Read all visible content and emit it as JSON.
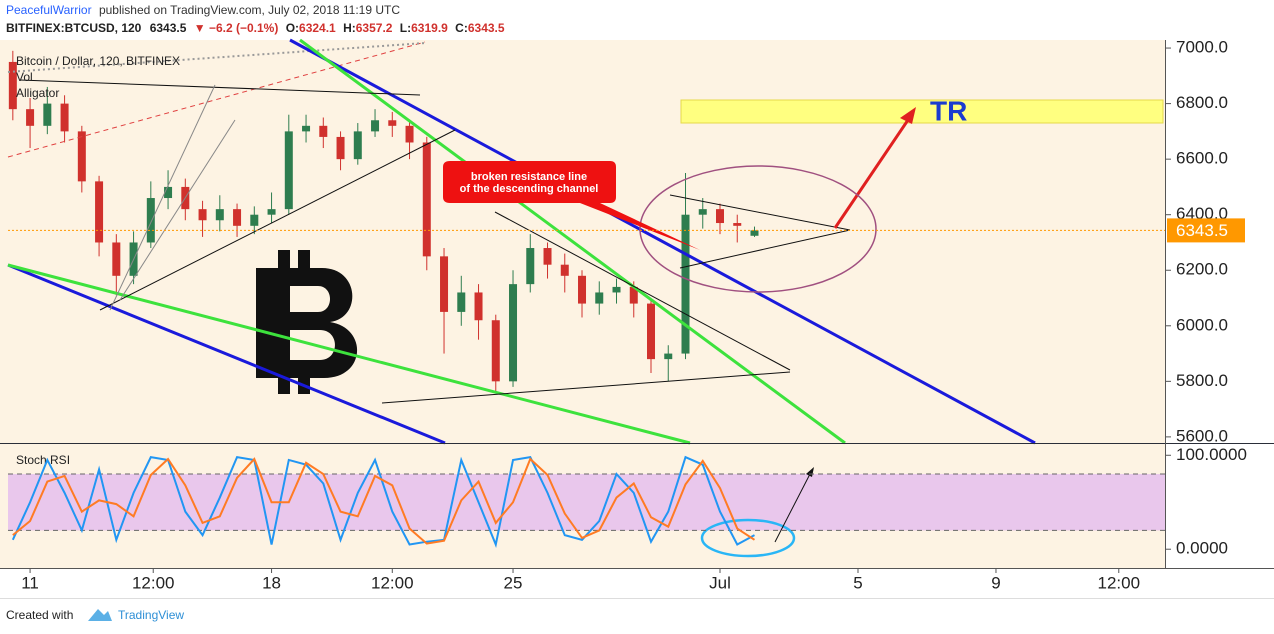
{
  "header": {
    "author": "PeacefulWarrior",
    "published": "published on TradingView.com, July 02, 2018 11:19 UTC",
    "symbol": "BITFINEX:BTCUSD, 120",
    "change": "▼ −6.2 (−0.1%)",
    "ohlc_labels": [
      "O:",
      "H:",
      "L:",
      "C:"
    ]
  },
  "footer": {
    "created": "Created with",
    "brand": "TradingView"
  },
  "chart_data": [
    {
      "type": "candlestick",
      "title": "Bitcoin / Dollar, 120, BITFINEX",
      "indicators": [
        "Vol",
        "Alligator"
      ],
      "x": [
        10.5,
        11,
        11.5,
        12,
        12.5,
        13,
        13.5,
        14,
        14.5,
        15,
        15.5,
        16,
        16.5,
        17,
        17.5,
        18,
        18.5,
        19,
        19.5,
        20,
        20.5,
        21,
        21.5,
        22,
        22.5,
        23,
        23.5,
        24,
        24.5,
        25,
        25.5,
        26,
        26.5,
        27,
        27.5,
        28,
        28.5,
        29,
        29.5,
        30,
        30.5,
        31,
        31.5,
        32
      ],
      "open": [
        6950,
        6780,
        6720,
        6800,
        6700,
        6520,
        6300,
        6180,
        6300,
        6460,
        6500,
        6420,
        6380,
        6420,
        6360,
        6400,
        6420,
        6700,
        6720,
        6680,
        6600,
        6700,
        6740,
        6720,
        6660,
        6250,
        6050,
        6120,
        6020,
        5800,
        6150,
        6280,
        6220,
        6180,
        6080,
        6120,
        6140,
        6080,
        5880,
        5900,
        6400,
        6420,
        6370,
        6324.1
      ],
      "high": [
        6990,
        6820,
        6860,
        6830,
        6720,
        6540,
        6330,
        6340,
        6520,
        6560,
        6530,
        6450,
        6470,
        6440,
        6430,
        6480,
        6760,
        6760,
        6750,
        6700,
        6730,
        6780,
        6770,
        6740,
        6680,
        6280,
        6180,
        6150,
        6040,
        6200,
        6330,
        6300,
        6260,
        6200,
        6160,
        6170,
        6160,
        6100,
        5930,
        6550,
        6460,
        6440,
        6400,
        6357.2
      ],
      "low": [
        6740,
        6640,
        6690,
        6660,
        6480,
        6250,
        6110,
        6150,
        6280,
        6420,
        6380,
        6320,
        6340,
        6320,
        6330,
        6370,
        6400,
        6660,
        6640,
        6560,
        6580,
        6680,
        6680,
        6600,
        6200,
        5900,
        6000,
        5950,
        5760,
        5780,
        6120,
        6170,
        6120,
        6030,
        6040,
        6080,
        6030,
        5830,
        5800,
        5880,
        6350,
        6330,
        6300,
        6319.9
      ],
      "close": [
        6780,
        6720,
        6800,
        6700,
        6520,
        6300,
        6180,
        6300,
        6460,
        6500,
        6420,
        6380,
        6420,
        6360,
        6400,
        6420,
        6700,
        6720,
        6680,
        6600,
        6700,
        6740,
        6720,
        6660,
        6250,
        6050,
        6120,
        6020,
        5800,
        6150,
        6280,
        6220,
        6180,
        6080,
        6120,
        6140,
        6080,
        5880,
        5900,
        6400,
        6420,
        6370,
        6360,
        6343.5
      ],
      "up_color": "#2e7d4f",
      "down_color": "#d0312d",
      "last_price_color": "#ff9800",
      "xlim": [
        10.36,
        43.9
      ],
      "ylim": [
        5578,
        7029
      ],
      "yticks": [
        {
          "value": 7000,
          "label": "7000.0"
        },
        {
          "value": 6800,
          "label": "6800.0"
        },
        {
          "value": 6600,
          "label": "6600.0"
        },
        {
          "value": 6400,
          "label": "6400.0"
        },
        {
          "value": 6200,
          "label": "6200.0"
        },
        {
          "value": 6000,
          "label": "6000.0"
        },
        {
          "value": 5800,
          "label": "5800.0"
        },
        {
          "value": 5600,
          "label": "5600.0"
        }
      ],
      "callout": [
        "broken resistance line",
        "of the descending channel"
      ],
      "target_label": "TR"
    },
    {
      "type": "line",
      "title": "Stoch RSI",
      "x": [
        10.5,
        11,
        11.5,
        12,
        12.5,
        13,
        13.5,
        14,
        14.5,
        15,
        15.5,
        16,
        16.5,
        17,
        17.5,
        18,
        18.5,
        19,
        19.5,
        20,
        20.5,
        21,
        21.5,
        22,
        22.5,
        23,
        23.5,
        24,
        24.5,
        25,
        25.5,
        26,
        26.5,
        27,
        27.5,
        28,
        28.5,
        29,
        29.5,
        30,
        30.5,
        31,
        31.5,
        32
      ],
      "series": [
        {
          "color": "#2196f3",
          "values": [
            10,
            50,
            95,
            60,
            20,
            85,
            10,
            60,
            98,
            95,
            40,
            15,
            55,
            98,
            95,
            5,
            95,
            90,
            70,
            10,
            60,
            95,
            40,
            5,
            8,
            10,
            95,
            50,
            5,
            95,
            98,
            60,
            15,
            10,
            30,
            80,
            60,
            8,
            40,
            98,
            90,
            40,
            5,
            15
          ]
        },
        {
          "color": "#ff7b24",
          "values": [
            15,
            30,
            72,
            78,
            40,
            52,
            48,
            35,
            79,
            96,
            68,
            28,
            35,
            76,
            96,
            50,
            50,
            92,
            80,
            40,
            35,
            78,
            68,
            22,
            6,
            9,
            52,
            72,
            28,
            50,
            96,
            79,
            38,
            12,
            20,
            55,
            70,
            34,
            24,
            69,
            94,
            65,
            22,
            10
          ]
        }
      ],
      "bands": [
        20,
        80
      ],
      "band_color": "#e9c7ec",
      "xlim": [
        10.36,
        43.9
      ],
      "ylim": [
        -20,
        112
      ],
      "yticks": [
        {
          "value": 100,
          "label": "100.0000"
        },
        {
          "value": 0,
          "label": "0.0000"
        }
      ],
      "xticks": [
        11,
        {
          "value": 14.57,
          "label": "12:00"
        },
        18,
        {
          "value": 21.5,
          "label": "12:00"
        },
        25,
        {
          "value": 31,
          "label": "Jul"
        },
        {
          "value": 35,
          "label": "5"
        },
        {
          "value": 39,
          "label": "9"
        },
        {
          "value": 42.56,
          "label": "12:00"
        }
      ]
    }
  ]
}
